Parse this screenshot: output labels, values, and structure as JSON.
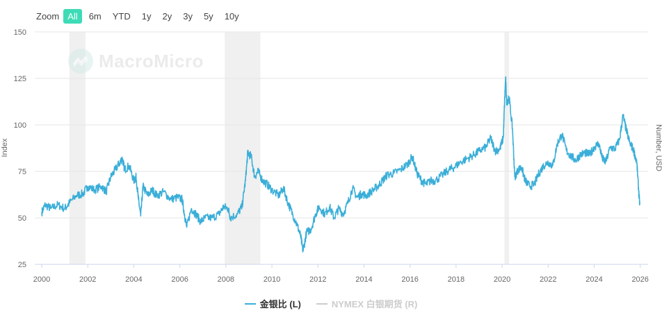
{
  "zoom": {
    "label": "Zoom",
    "options": [
      "All",
      "6m",
      "YTD",
      "1y",
      "2y",
      "3y",
      "5y",
      "10y"
    ],
    "active": "All"
  },
  "watermark": {
    "text": "MacroMicro"
  },
  "colors": {
    "series": "#3aaed8",
    "recession": "#f0f0f0",
    "grid": "#e6e6e6",
    "muted": "#cccccc",
    "zoom_active": "#3ddbb6"
  },
  "chart_data": {
    "type": "line",
    "title": "",
    "ylabel_left": "Index",
    "ylabel_right": "Number, USD",
    "ylim": [
      25,
      150
    ],
    "yticks": [
      25,
      50,
      75,
      100,
      125,
      150
    ],
    "xlim": [
      2000,
      2026.1
    ],
    "xticks": [
      2000,
      2002,
      2004,
      2006,
      2008,
      2010,
      2012,
      2014,
      2016,
      2018,
      2020,
      2022,
      2024,
      2026
    ],
    "recessions": [
      [
        2001.2,
        2001.9
      ],
      [
        2007.95,
        2009.5
      ],
      [
        2020.1,
        2020.3
      ]
    ],
    "series": [
      {
        "name": "金银比 (L)",
        "visible": true,
        "points": [
          [
            2000.0,
            53
          ],
          [
            2000.15,
            57
          ],
          [
            2000.4,
            55
          ],
          [
            2000.7,
            57
          ],
          [
            2001.0,
            55
          ],
          [
            2001.2,
            58
          ],
          [
            2001.5,
            62
          ],
          [
            2001.8,
            63
          ],
          [
            2002.0,
            67
          ],
          [
            2002.3,
            65
          ],
          [
            2002.6,
            67
          ],
          [
            2002.8,
            64
          ],
          [
            2003.0,
            72
          ],
          [
            2003.2,
            76
          ],
          [
            2003.4,
            80
          ],
          [
            2003.5,
            82
          ],
          [
            2003.6,
            76
          ],
          [
            2003.8,
            78
          ],
          [
            2004.0,
            70
          ],
          [
            2004.1,
            72
          ],
          [
            2004.2,
            60
          ],
          [
            2004.3,
            51
          ],
          [
            2004.4,
            67
          ],
          [
            2004.6,
            62
          ],
          [
            2004.8,
            65
          ],
          [
            2005.0,
            62
          ],
          [
            2005.3,
            64
          ],
          [
            2005.6,
            60
          ],
          [
            2005.9,
            61
          ],
          [
            2006.1,
            60
          ],
          [
            2006.2,
            52
          ],
          [
            2006.3,
            45
          ],
          [
            2006.5,
            55
          ],
          [
            2006.7,
            52
          ],
          [
            2006.9,
            48
          ],
          [
            2007.1,
            50
          ],
          [
            2007.4,
            50
          ],
          [
            2007.7,
            52
          ],
          [
            2007.9,
            56
          ],
          [
            2008.1,
            55
          ],
          [
            2008.2,
            50
          ],
          [
            2008.5,
            52
          ],
          [
            2008.7,
            56
          ],
          [
            2008.85,
            70
          ],
          [
            2008.95,
            85
          ],
          [
            2009.1,
            83
          ],
          [
            2009.25,
            72
          ],
          [
            2009.4,
            75
          ],
          [
            2009.6,
            70
          ],
          [
            2009.8,
            68
          ],
          [
            2010.0,
            65
          ],
          [
            2010.3,
            62
          ],
          [
            2010.5,
            66
          ],
          [
            2010.7,
            58
          ],
          [
            2010.9,
            52
          ],
          [
            2011.1,
            46
          ],
          [
            2011.25,
            40
          ],
          [
            2011.35,
            32
          ],
          [
            2011.5,
            42
          ],
          [
            2011.7,
            44
          ],
          [
            2011.9,
            52
          ],
          [
            2012.05,
            56
          ],
          [
            2012.3,
            52
          ],
          [
            2012.5,
            56
          ],
          [
            2012.7,
            50
          ],
          [
            2012.9,
            55
          ],
          [
            2013.1,
            52
          ],
          [
            2013.3,
            58
          ],
          [
            2013.5,
            66
          ],
          [
            2013.7,
            61
          ],
          [
            2013.9,
            63
          ],
          [
            2014.1,
            62
          ],
          [
            2014.4,
            65
          ],
          [
            2014.6,
            67
          ],
          [
            2014.8,
            70
          ],
          [
            2015.0,
            73
          ],
          [
            2015.3,
            74
          ],
          [
            2015.6,
            76
          ],
          [
            2015.9,
            79
          ],
          [
            2016.1,
            83
          ],
          [
            2016.3,
            74
          ],
          [
            2016.5,
            70
          ],
          [
            2016.7,
            68
          ],
          [
            2016.9,
            70
          ],
          [
            2017.1,
            70
          ],
          [
            2017.4,
            73
          ],
          [
            2017.7,
            76
          ],
          [
            2017.9,
            77
          ],
          [
            2018.2,
            80
          ],
          [
            2018.5,
            82
          ],
          [
            2018.8,
            84
          ],
          [
            2019.0,
            86
          ],
          [
            2019.3,
            88
          ],
          [
            2019.5,
            93
          ],
          [
            2019.7,
            86
          ],
          [
            2019.9,
            87
          ],
          [
            2020.05,
            93
          ],
          [
            2020.1,
            110
          ],
          [
            2020.15,
            125
          ],
          [
            2020.2,
            112
          ],
          [
            2020.3,
            115
          ],
          [
            2020.45,
            98
          ],
          [
            2020.55,
            72
          ],
          [
            2020.7,
            76
          ],
          [
            2020.85,
            77
          ],
          [
            2021.0,
            70
          ],
          [
            2021.2,
            67
          ],
          [
            2021.4,
            68
          ],
          [
            2021.6,
            74
          ],
          [
            2021.8,
            78
          ],
          [
            2022.0,
            80
          ],
          [
            2022.2,
            78
          ],
          [
            2022.4,
            90
          ],
          [
            2022.6,
            95
          ],
          [
            2022.8,
            86
          ],
          [
            2023.0,
            83
          ],
          [
            2023.2,
            81
          ],
          [
            2023.4,
            84
          ],
          [
            2023.6,
            85
          ],
          [
            2023.8,
            84
          ],
          [
            2024.0,
            88
          ],
          [
            2024.2,
            90
          ],
          [
            2024.35,
            82
          ],
          [
            2024.5,
            80
          ],
          [
            2024.7,
            88
          ],
          [
            2024.9,
            87
          ],
          [
            2025.1,
            92
          ],
          [
            2025.25,
            105
          ],
          [
            2025.4,
            97
          ],
          [
            2025.55,
            90
          ],
          [
            2025.7,
            87
          ],
          [
            2025.85,
            80
          ],
          [
            2025.93,
            65
          ],
          [
            2025.98,
            57
          ]
        ]
      },
      {
        "name": "NYMEX 白银期货 (R)",
        "visible": false,
        "points": []
      }
    ]
  }
}
